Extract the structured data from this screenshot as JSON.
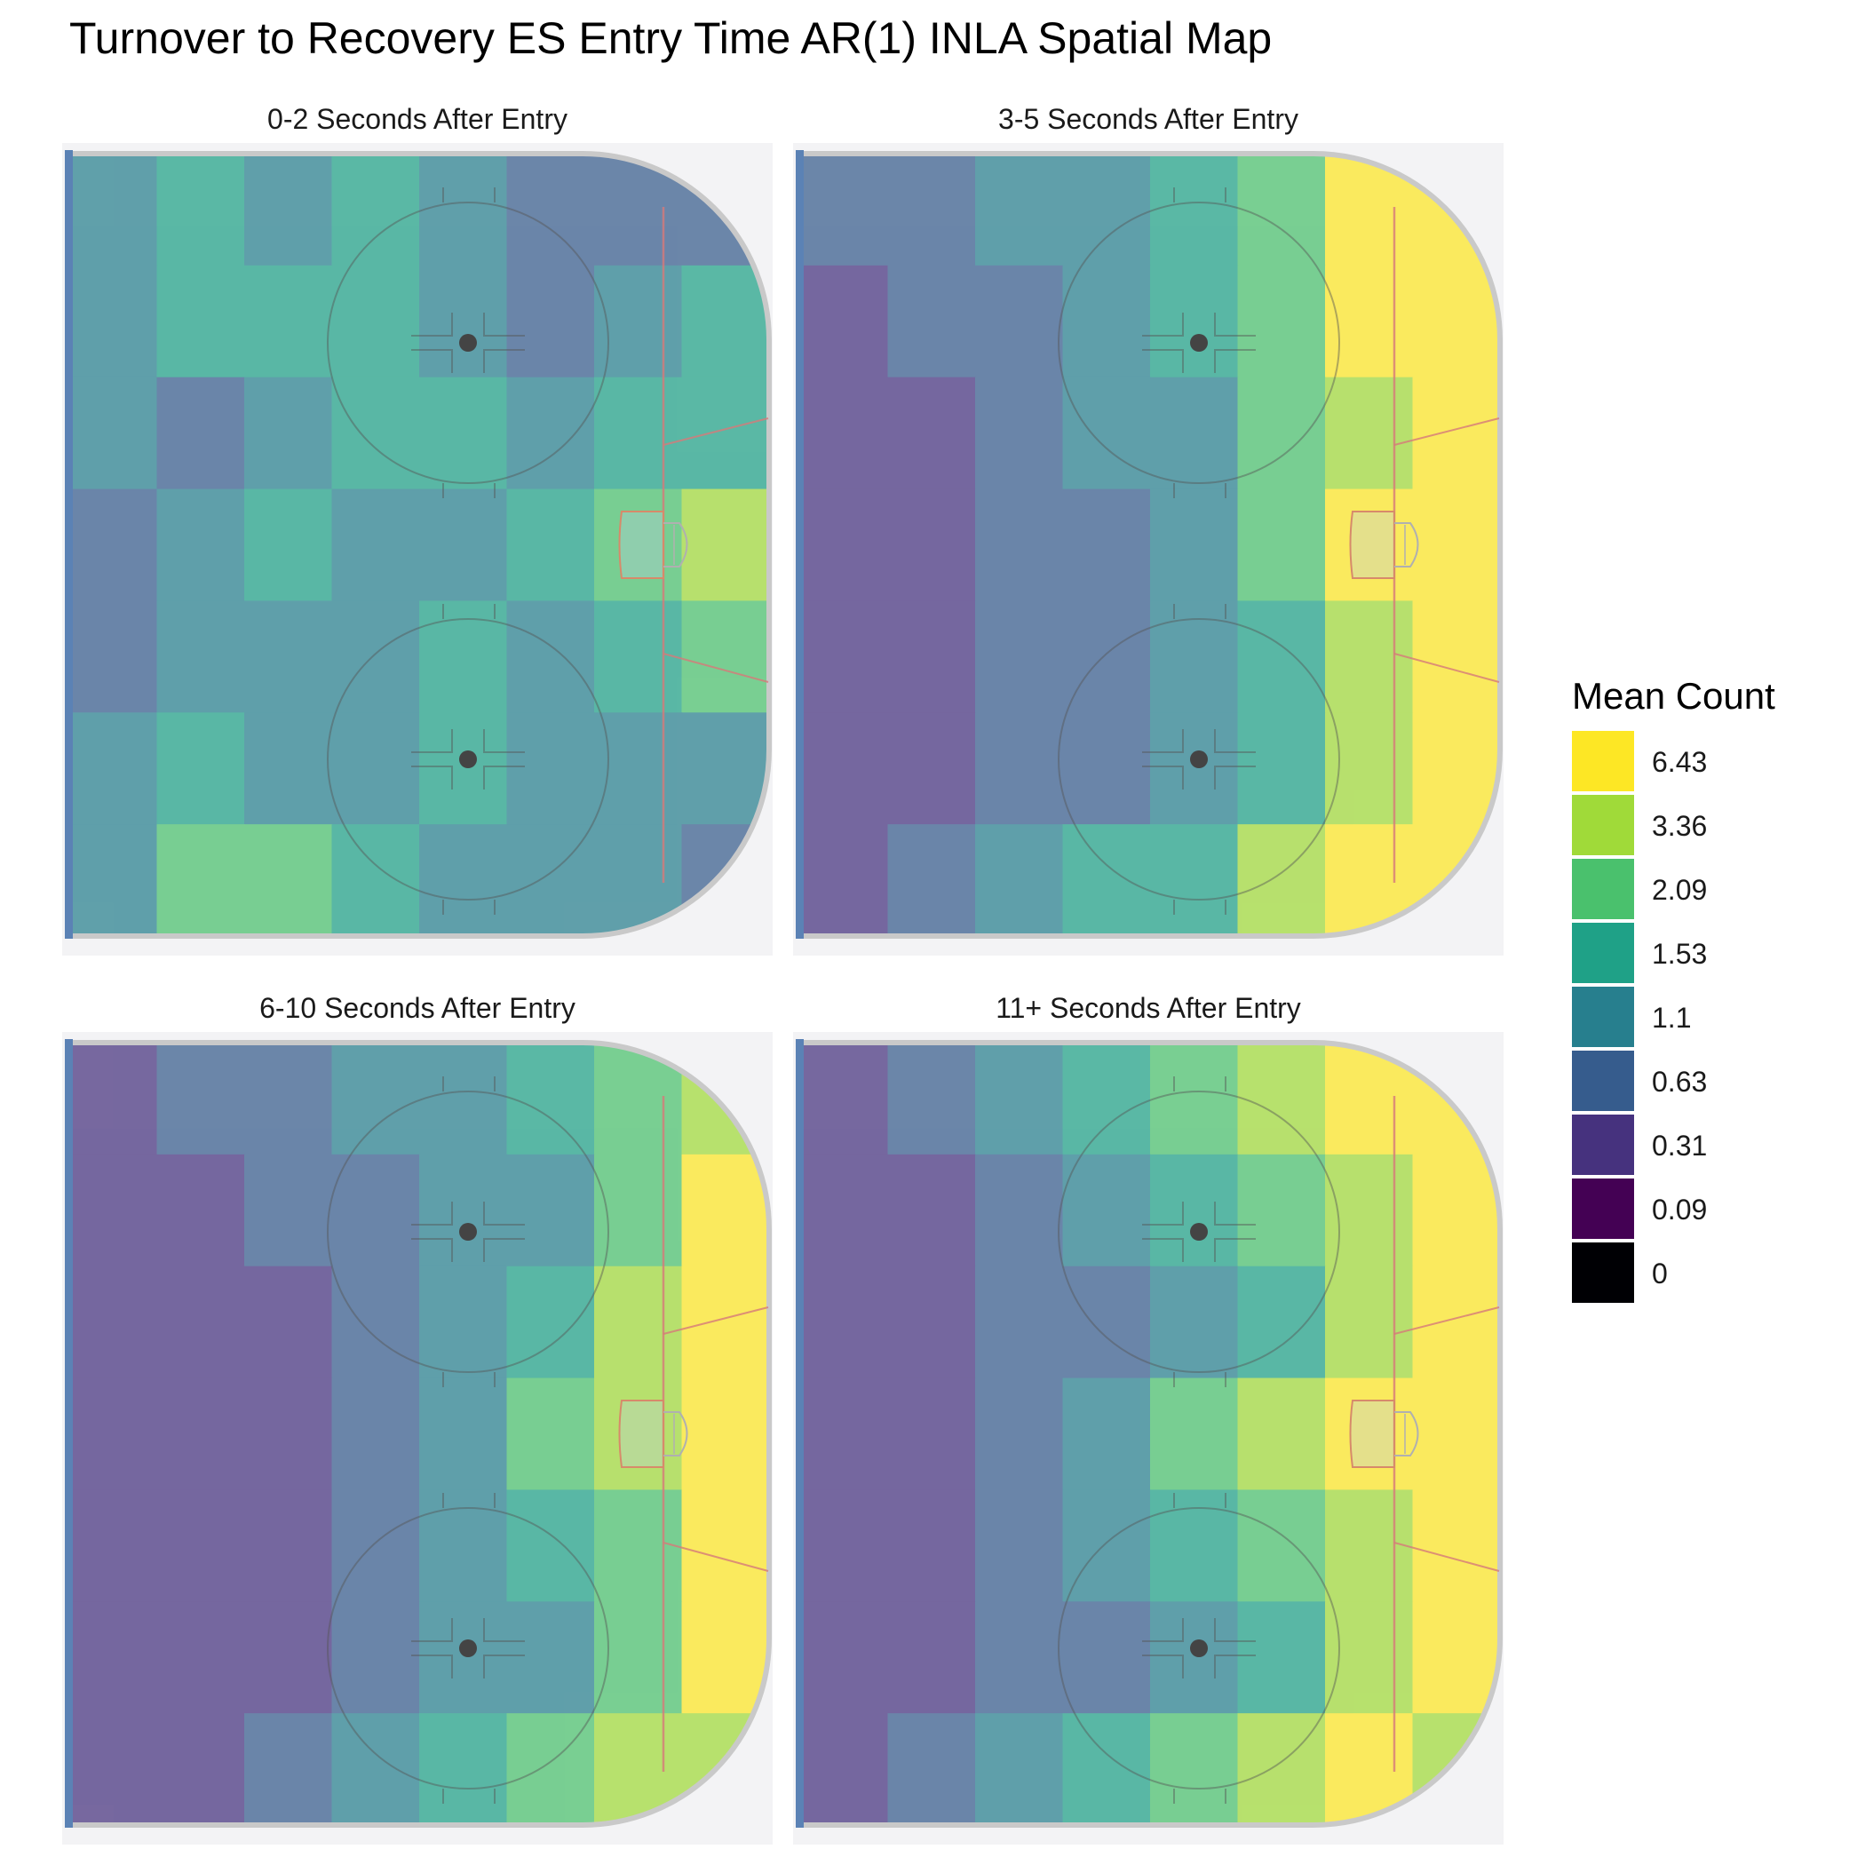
{
  "chart_data": {
    "type": "heatmap",
    "title": "Turnover to Recovery ES Entry Time AR(1) INLA Spatial Map",
    "legend": {
      "title": "Mean Count",
      "placement": "right",
      "bins": [
        {
          "label": "6.43",
          "color": "#fde725"
        },
        {
          "label": "3.36",
          "color": "#a0da39"
        },
        {
          "label": "2.09",
          "color": "#4ac16d"
        },
        {
          "label": "1.53",
          "color": "#1fa187"
        },
        {
          "label": "1.1",
          "color": "#277f8e"
        },
        {
          "label": "0.63",
          "color": "#365c8d"
        },
        {
          "label": "0.31",
          "color": "#46327e"
        },
        {
          "label": "0.09",
          "color": "#440154"
        },
        {
          "label": "0",
          "color": "#000004"
        }
      ]
    },
    "panels": [
      {
        "title": "0-2 Seconds After Entry",
        "grid_columns_left_to_right": 8,
        "grid_rows_top_to_bottom": 7,
        "bin_index_grid": [
          [
            4,
            3,
            4,
            3,
            4,
            5,
            5,
            5
          ],
          [
            4,
            3,
            3,
            3,
            4,
            5,
            4,
            3
          ],
          [
            4,
            5,
            4,
            3,
            3,
            4,
            3,
            3
          ],
          [
            5,
            4,
            3,
            4,
            4,
            3,
            2,
            1
          ],
          [
            5,
            4,
            4,
            4,
            3,
            4,
            3,
            2
          ],
          [
            4,
            3,
            4,
            4,
            3,
            4,
            4,
            4
          ],
          [
            4,
            2,
            2,
            3,
            4,
            4,
            4,
            5
          ]
        ]
      },
      {
        "title": "3-5 Seconds After Entry",
        "grid_columns_left_to_right": 8,
        "grid_rows_top_to_bottom": 7,
        "bin_index_grid": [
          [
            5,
            5,
            4,
            4,
            3,
            2,
            0,
            0
          ],
          [
            6,
            5,
            5,
            4,
            3,
            2,
            0,
            0
          ],
          [
            6,
            6,
            5,
            4,
            4,
            2,
            1,
            0
          ],
          [
            6,
            6,
            5,
            5,
            4,
            2,
            0,
            0
          ],
          [
            6,
            6,
            5,
            5,
            4,
            3,
            1,
            0
          ],
          [
            6,
            6,
            5,
            5,
            4,
            3,
            1,
            0
          ],
          [
            6,
            5,
            4,
            3,
            3,
            1,
            0,
            0
          ]
        ]
      },
      {
        "title": "6-10 Seconds After Entry",
        "grid_columns_left_to_right": 8,
        "grid_rows_top_to_bottom": 7,
        "bin_index_grid": [
          [
            6,
            5,
            5,
            4,
            4,
            3,
            2,
            1
          ],
          [
            6,
            6,
            5,
            5,
            4,
            4,
            2,
            0
          ],
          [
            6,
            6,
            6,
            5,
            4,
            3,
            1,
            0
          ],
          [
            6,
            6,
            6,
            5,
            4,
            2,
            1,
            0
          ],
          [
            6,
            6,
            6,
            5,
            4,
            3,
            2,
            0
          ],
          [
            6,
            6,
            6,
            5,
            4,
            4,
            2,
            0
          ],
          [
            6,
            6,
            5,
            4,
            3,
            2,
            1,
            1
          ]
        ]
      },
      {
        "title": "11+ Seconds After Entry",
        "grid_columns_left_to_right": 8,
        "grid_rows_top_to_bottom": 7,
        "bin_index_grid": [
          [
            6,
            5,
            4,
            3,
            2,
            1,
            0,
            0
          ],
          [
            6,
            6,
            5,
            4,
            3,
            2,
            1,
            0
          ],
          [
            6,
            6,
            5,
            5,
            4,
            3,
            1,
            0
          ],
          [
            6,
            6,
            5,
            4,
            2,
            1,
            0,
            0
          ],
          [
            6,
            6,
            5,
            4,
            3,
            2,
            1,
            0
          ],
          [
            6,
            6,
            5,
            5,
            4,
            3,
            1,
            0
          ],
          [
            6,
            5,
            4,
            3,
            2,
            1,
            0,
            1
          ]
        ]
      }
    ]
  }
}
